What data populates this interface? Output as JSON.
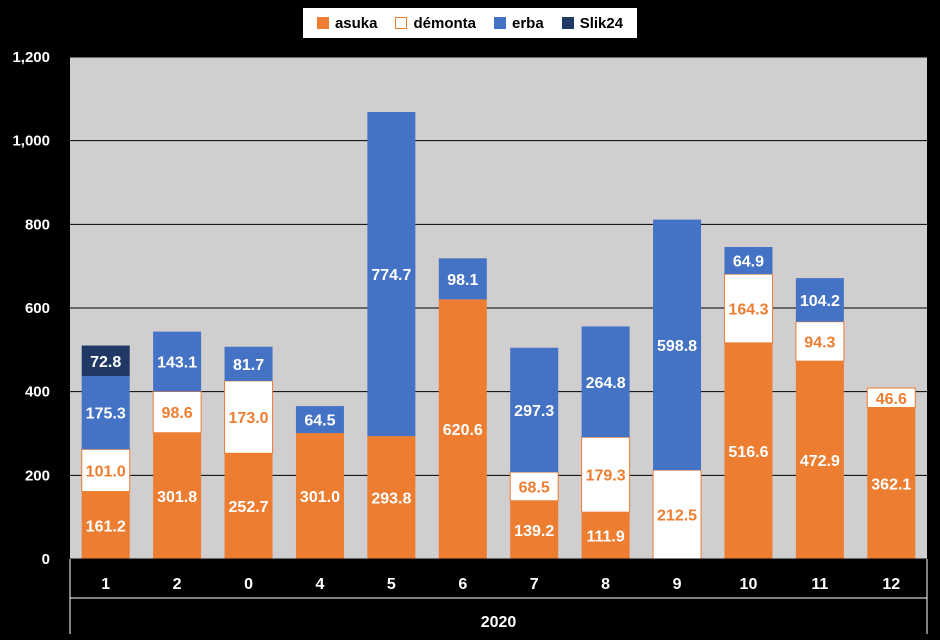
{
  "chart_data": {
    "type": "bar",
    "stacked": true,
    "categories": [
      "1",
      "2",
      "0",
      "4",
      "5",
      "6",
      "7",
      "8",
      "9",
      "10",
      "11",
      "12"
    ],
    "group_label": "2020",
    "series": [
      {
        "name": "asuka",
        "color": "#ED7D31",
        "label_color": "#FFFFFF",
        "values": [
          161.2,
          301.8,
          252.7,
          301.0,
          293.8,
          620.6,
          139.2,
          111.9,
          0,
          516.6,
          472.9,
          362.1
        ],
        "labels": [
          "161.2",
          "301.8",
          "252.7",
          "301.0",
          "293.8",
          "620.6",
          "139.2",
          "111.9",
          "",
          "516.6",
          "472.9",
          "362.1"
        ]
      },
      {
        "name": "démonta",
        "color": "#FFFFFF",
        "label_color": "#ED7D31",
        "values": [
          101.0,
          98.6,
          173.0,
          0,
          0,
          0,
          68.5,
          179.3,
          212.5,
          164.3,
          94.3,
          46.6
        ],
        "labels": [
          "101.0",
          "98.6",
          "173.0",
          "",
          "",
          "",
          "68.5",
          "179.3",
          "212.5",
          "164.3",
          "94.3",
          "46.6"
        ]
      },
      {
        "name": "erba",
        "color": "#4472C4",
        "label_color": "#FFFFFF",
        "values": [
          175.3,
          143.1,
          81.7,
          64.5,
          774.7,
          98.1,
          297.3,
          264.8,
          598.8,
          64.9,
          104.2,
          0
        ],
        "labels": [
          "175.3",
          "143.1",
          "81.7",
          "64.5",
          "774.7",
          "98.1",
          "297.3",
          "264.8",
          "598.8",
          "64.9",
          "104.2",
          ""
        ]
      },
      {
        "name": "Slik24",
        "color": "#203864",
        "label_color": "#FFFFFF",
        "values": [
          72.8,
          0,
          0,
          0,
          0,
          0,
          0,
          0,
          0,
          0,
          0,
          0
        ],
        "labels": [
          "72.8",
          "",
          "",
          "",
          "",
          "",
          "",
          "",
          "",
          "",
          "",
          ""
        ]
      }
    ],
    "y_ticks": [
      "0",
      "200",
      "400",
      "600",
      "800",
      "1,000",
      "1,200"
    ],
    "ylim": [
      0,
      1200
    ],
    "grid": true,
    "legend_position": "top",
    "plot_background": "#D0CECE"
  }
}
